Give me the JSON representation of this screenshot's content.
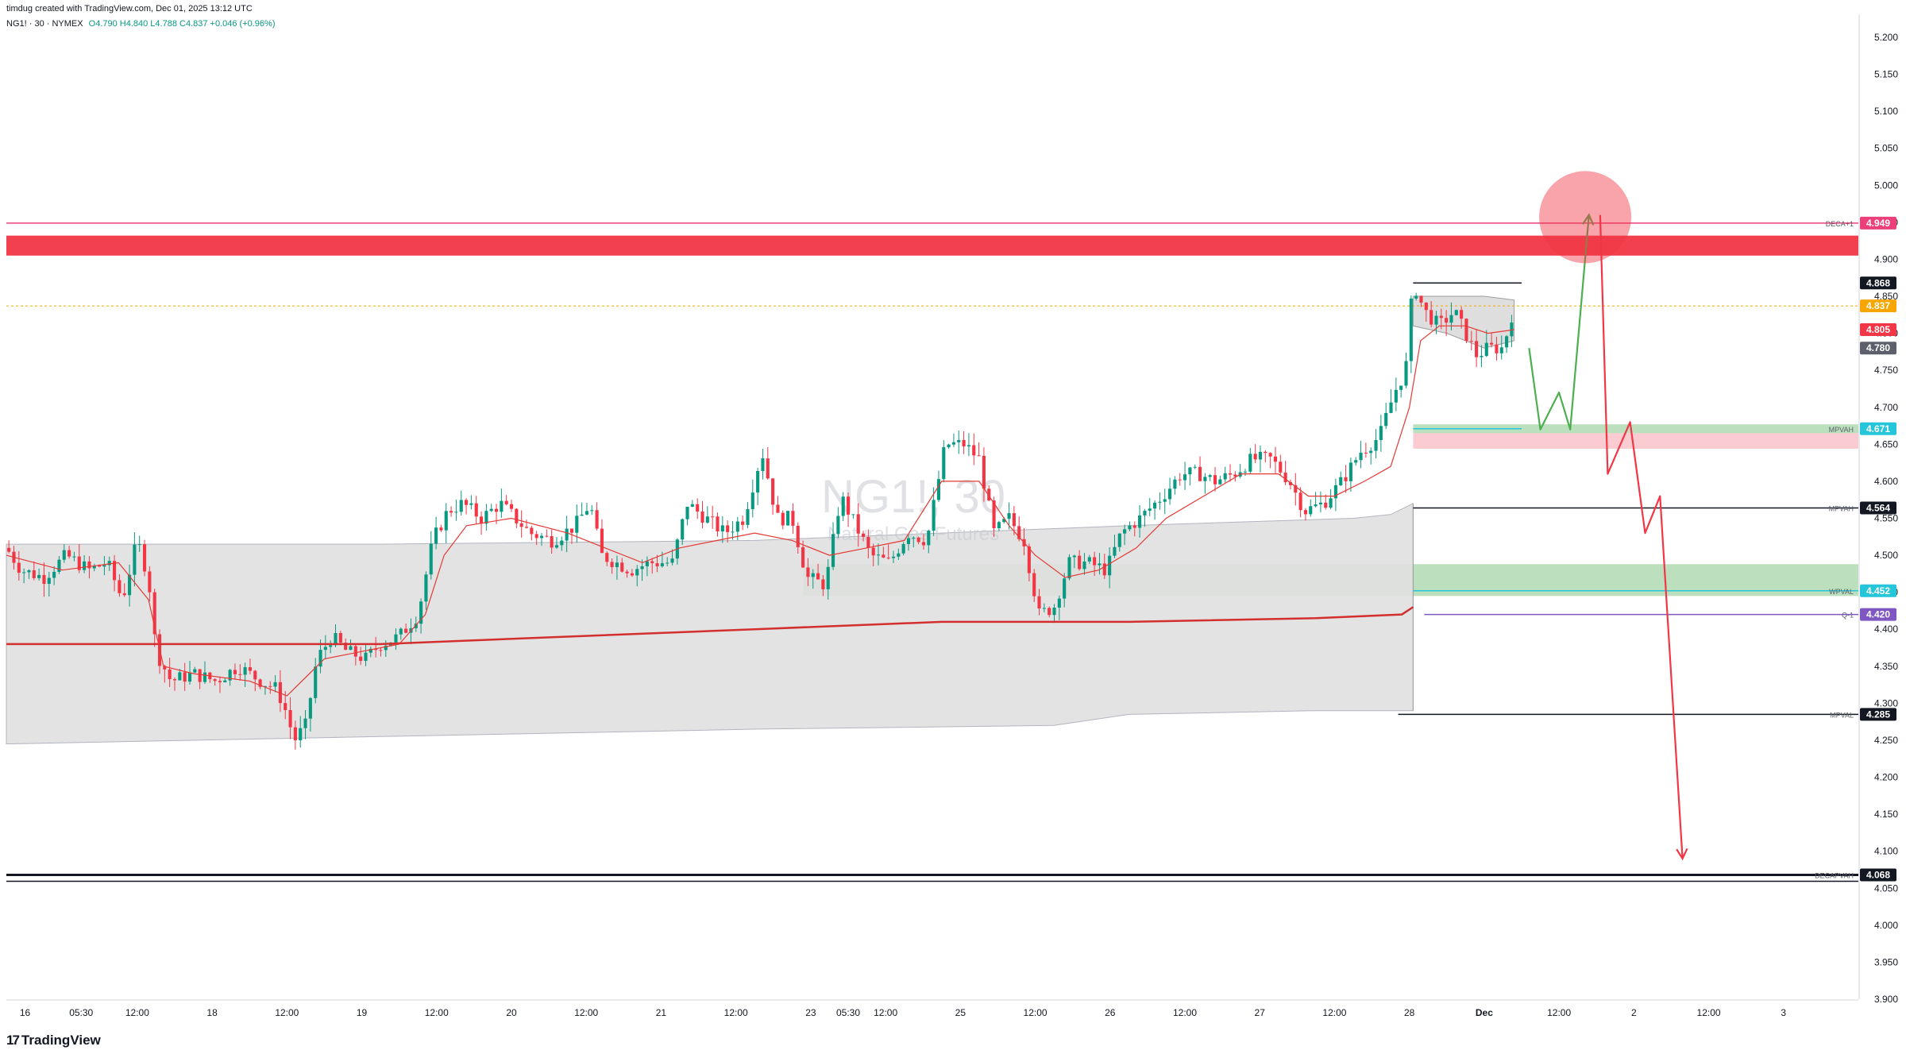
{
  "header": {
    "credit": "timdug created with TradingView.com, Dec 01, 2025 13:12 UTC",
    "symbol": "NG1! · 30 · NYMEX",
    "ohlc": "O4.790 H4.840 L4.788 C4.837 +0.046 (+0.96%)"
  },
  "watermark": {
    "symbol": "NG1!, 30",
    "name": "Natural Gas Futures"
  },
  "brand": {
    "name": "TradingView",
    "mark": "17"
  },
  "colors": {
    "up": "#089981",
    "down": "#f23645",
    "resistance_zone": "#f23645",
    "demand_zone": "#a5d6a7",
    "value_area": "#e0e0e0",
    "vwap": "#e53935",
    "projection_up": "#4caf50",
    "projection_down": "#f23645",
    "price_tag": "#f7a600",
    "q_line": "#7e57c2",
    "cyan_tag": "#26c6da",
    "deca_tag": "#ec407a"
  },
  "chart_data": {
    "type": "candlestick",
    "symbol": "NG1!",
    "timeframe": "30",
    "exchange": "NYMEX",
    "y_axis": {
      "range": [
        3.9,
        5.2
      ],
      "ticks": [
        "5.200",
        "5.150",
        "5.100",
        "5.050",
        "5.000",
        "4.950",
        "4.900",
        "4.850",
        "4.800",
        "4.750",
        "4.700",
        "4.650",
        "4.600",
        "4.550",
        "4.500",
        "4.450",
        "4.400",
        "4.350",
        "4.300",
        "4.250",
        "4.200",
        "4.150",
        "4.100",
        "4.050",
        "4.000",
        "3.950",
        "3.900"
      ]
    },
    "x_axis": {
      "ticks": [
        {
          "label": "16",
          "t": 0.5
        },
        {
          "label": "05:30",
          "t": 2
        },
        {
          "label": "12:00",
          "t": 3.5
        },
        {
          "label": "18",
          "t": 5.5
        },
        {
          "label": "12:00",
          "t": 7.5
        },
        {
          "label": "19",
          "t": 9.5
        },
        {
          "label": "12:00",
          "t": 11.5
        },
        {
          "label": "20",
          "t": 13.5
        },
        {
          "label": "12:00",
          "t": 15.5
        },
        {
          "label": "21",
          "t": 17.5
        },
        {
          "label": "12:00",
          "t": 19.5
        },
        {
          "label": "23",
          "t": 21.5
        },
        {
          "label": "05:30",
          "t": 22.5
        },
        {
          "label": "12:00",
          "t": 23.5
        },
        {
          "label": "25",
          "t": 25.5
        },
        {
          "label": "12:00",
          "t": 27.5
        },
        {
          "label": "26",
          "t": 29.5
        },
        {
          "label": "12:00",
          "t": 31.5
        },
        {
          "label": "27",
          "t": 33.5
        },
        {
          "label": "12:00",
          "t": 35.5
        },
        {
          "label": "28",
          "t": 37.5
        },
        {
          "label": "Dec",
          "t": 39.5,
          "bold": true
        },
        {
          "label": "12:00",
          "t": 41.5
        },
        {
          "label": "2",
          "t": 43.5
        },
        {
          "label": "12:00",
          "t": 45.5
        },
        {
          "label": "3",
          "t": 47.5
        }
      ]
    },
    "price_path": [
      [
        0,
        4.51
      ],
      [
        0.4,
        4.48
      ],
      [
        1,
        4.47
      ],
      [
        1.6,
        4.5
      ],
      [
        2.2,
        4.48
      ],
      [
        2.7,
        4.49
      ],
      [
        3.1,
        4.44
      ],
      [
        3.5,
        4.52
      ],
      [
        3.8,
        4.47
      ],
      [
        4,
        4.37
      ],
      [
        4.4,
        4.33
      ],
      [
        5,
        4.34
      ],
      [
        5.6,
        4.33
      ],
      [
        6.2,
        4.35
      ],
      [
        6.8,
        4.33
      ],
      [
        7.2,
        4.32
      ],
      [
        7.4,
        4.3
      ],
      [
        7.7,
        4.25
      ],
      [
        8,
        4.27
      ],
      [
        8.3,
        4.36
      ],
      [
        8.7,
        4.39
      ],
      [
        9.1,
        4.37
      ],
      [
        9.6,
        4.36
      ],
      [
        10,
        4.38
      ],
      [
        10.5,
        4.39
      ],
      [
        11,
        4.42
      ],
      [
        11.4,
        4.52
      ],
      [
        11.8,
        4.56
      ],
      [
        12.2,
        4.57
      ],
      [
        12.7,
        4.55
      ],
      [
        13.2,
        4.57
      ],
      [
        13.6,
        4.55
      ],
      [
        14,
        4.53
      ],
      [
        14.6,
        4.52
      ],
      [
        15.2,
        4.54
      ],
      [
        15.6,
        4.57
      ],
      [
        15.9,
        4.5
      ],
      [
        16.3,
        4.49
      ],
      [
        16.7,
        4.48
      ],
      [
        17.2,
        4.49
      ],
      [
        17.8,
        4.49
      ],
      [
        18.2,
        4.57
      ],
      [
        18.7,
        4.55
      ],
      [
        19.2,
        4.53
      ],
      [
        19.7,
        4.55
      ],
      [
        20.2,
        4.64
      ],
      [
        20.6,
        4.55
      ],
      [
        21,
        4.55
      ],
      [
        21.4,
        4.47
      ],
      [
        21.9,
        4.46
      ],
      [
        22.3,
        4.58
      ],
      [
        22.7,
        4.54
      ],
      [
        23.1,
        4.5
      ],
      [
        23.6,
        4.49
      ],
      [
        24.1,
        4.53
      ],
      [
        24.6,
        4.52
      ],
      [
        25.1,
        4.65
      ],
      [
        25.6,
        4.65
      ],
      [
        26,
        4.63
      ],
      [
        26.4,
        4.53
      ],
      [
        26.8,
        4.55
      ],
      [
        27.2,
        4.52
      ],
      [
        27.6,
        4.42
      ],
      [
        28,
        4.43
      ],
      [
        28.4,
        4.49
      ],
      [
        28.9,
        4.49
      ],
      [
        29.4,
        4.48
      ],
      [
        29.8,
        4.53
      ],
      [
        30.3,
        4.55
      ],
      [
        30.9,
        4.58
      ],
      [
        31.4,
        4.61
      ],
      [
        31.9,
        4.61
      ],
      [
        32.3,
        4.6
      ],
      [
        32.8,
        4.61
      ],
      [
        33.3,
        4.63
      ],
      [
        33.8,
        4.63
      ],
      [
        34.3,
        4.6
      ],
      [
        34.7,
        4.56
      ],
      [
        35.2,
        4.57
      ],
      [
        35.7,
        4.6
      ],
      [
        36.2,
        4.64
      ],
      [
        36.7,
        4.66
      ],
      [
        37.1,
        4.72
      ],
      [
        37.4,
        4.75
      ],
      [
        37.6,
        4.87
      ],
      [
        37.9,
        4.83
      ],
      [
        38.3,
        4.81
      ],
      [
        38.7,
        4.83
      ],
      [
        39,
        4.8
      ],
      [
        39.3,
        4.77
      ],
      [
        39.6,
        4.78
      ],
      [
        40,
        4.78
      ],
      [
        40.3,
        4.837
      ]
    ],
    "vwap_path": [
      [
        0,
        4.5
      ],
      [
        1.5,
        4.48
      ],
      [
        3,
        4.49
      ],
      [
        3.8,
        4.44
      ],
      [
        4.2,
        4.35
      ],
      [
        5,
        4.34
      ],
      [
        6.5,
        4.33
      ],
      [
        7.5,
        4.31
      ],
      [
        8.5,
        4.36
      ],
      [
        9.5,
        4.37
      ],
      [
        10.5,
        4.38
      ],
      [
        11.2,
        4.42
      ],
      [
        11.7,
        4.5
      ],
      [
        12.3,
        4.54
      ],
      [
        13.5,
        4.55
      ],
      [
        15,
        4.53
      ],
      [
        16,
        4.51
      ],
      [
        17,
        4.49
      ],
      [
        18,
        4.51
      ],
      [
        19,
        4.52
      ],
      [
        20,
        4.53
      ],
      [
        21,
        4.52
      ],
      [
        22,
        4.5
      ],
      [
        23,
        4.51
      ],
      [
        24,
        4.52
      ],
      [
        25,
        4.6
      ],
      [
        26,
        4.6
      ],
      [
        26.8,
        4.54
      ],
      [
        27.5,
        4.5
      ],
      [
        28.3,
        4.47
      ],
      [
        29.2,
        4.48
      ],
      [
        30.2,
        4.51
      ],
      [
        31,
        4.55
      ],
      [
        32,
        4.58
      ],
      [
        33,
        4.61
      ],
      [
        34,
        4.61
      ],
      [
        34.8,
        4.58
      ],
      [
        35.5,
        4.58
      ],
      [
        36.3,
        4.6
      ],
      [
        37,
        4.62
      ],
      [
        37.5,
        4.7
      ],
      [
        37.8,
        4.79
      ],
      [
        38.3,
        4.81
      ],
      [
        39,
        4.81
      ],
      [
        39.6,
        4.8
      ],
      [
        40.3,
        4.805
      ]
    ],
    "mid_line": [
      [
        0,
        4.38
      ],
      [
        3,
        4.38
      ],
      [
        6,
        4.38
      ],
      [
        10,
        4.38
      ],
      [
        15,
        4.39
      ],
      [
        20,
        4.4
      ],
      [
        25,
        4.41
      ],
      [
        30,
        4.41
      ],
      [
        35,
        4.415
      ],
      [
        37.3,
        4.42
      ],
      [
        37.6,
        4.43
      ]
    ],
    "value_area": {
      "top": [
        [
          0,
          4.515
        ],
        [
          10,
          4.515
        ],
        [
          20,
          4.52
        ],
        [
          30,
          4.54
        ],
        [
          36,
          4.55
        ],
        [
          37,
          4.555
        ],
        [
          37.6,
          4.57
        ]
      ],
      "bottom": [
        [
          0,
          4.245
        ],
        [
          10,
          4.255
        ],
        [
          20,
          4.265
        ],
        [
          28,
          4.27
        ],
        [
          30,
          4.285
        ],
        [
          35,
          4.29
        ],
        [
          37.6,
          4.29
        ]
      ]
    },
    "session_box": {
      "top": [
        [
          37.6,
          4.85
        ],
        [
          38.6,
          4.85
        ],
        [
          39.5,
          4.85
        ],
        [
          40.3,
          4.845
        ]
      ],
      "bottom": [
        [
          37.6,
          4.81
        ],
        [
          38.5,
          4.8
        ],
        [
          39.5,
          4.78
        ],
        [
          40.3,
          4.79
        ]
      ]
    },
    "zones": [
      {
        "kind": "resistance",
        "from": 0,
        "to": 49.5,
        "low": 4.905,
        "high": 4.932
      },
      {
        "kind": "demand",
        "from": 21.3,
        "to": 49.5,
        "low": 4.445,
        "high": 4.488
      },
      {
        "kind": "demand",
        "from": 37.6,
        "to": 49.5,
        "low": 4.665,
        "high": 4.677
      },
      {
        "kind": "supply",
        "from": 37.6,
        "to": 49.5,
        "low": 4.644,
        "high": 4.665
      }
    ],
    "levels": [
      {
        "price": 4.949,
        "label": "DECA+1",
        "tag": "4.949",
        "color": "#ec407a",
        "from": 0
      },
      {
        "price": 4.868,
        "label": "",
        "tag": "4.868",
        "color": "#131722",
        "from": 37.6,
        "to": 40.5,
        "hide_line_right": true
      },
      {
        "price": 4.837,
        "label": "",
        "tag": "4.837",
        "color": "#f7a600",
        "from": 0,
        "dashed": true
      },
      {
        "price": 4.805,
        "label": "",
        "tag": "4.805",
        "color": "#f23645"
      },
      {
        "price": 4.78,
        "label": "",
        "tag": "4.780",
        "color": "#5d606b"
      },
      {
        "price": 4.671,
        "label": "MPVAH",
        "tag": "4.671",
        "color": "#26c6da",
        "from": 37.6,
        "to": 40.5
      },
      {
        "price": 4.564,
        "label": "MPVAH",
        "tag": "4.564",
        "color": "#131722",
        "from": 37.6
      },
      {
        "price": 4.452,
        "label": "WPVAL",
        "tag": "4.452",
        "color": "#26c6da",
        "from": 37.6
      },
      {
        "price": 4.42,
        "label": "Q-1",
        "tag": "4.420",
        "color": "#7e57c2",
        "from": 37.9
      },
      {
        "price": 4.285,
        "label": "MPVAL",
        "tag": "4.285",
        "color": "#131722",
        "from": 37.2
      },
      {
        "price": 4.068,
        "label": "DECAPVAH",
        "tag": "4.068",
        "color": "#131722",
        "from": 0
      }
    ],
    "projections": [
      {
        "color": "#4caf50",
        "points": [
          [
            40.7,
            4.78
          ],
          [
            41,
            4.67
          ],
          [
            41.5,
            4.72
          ],
          [
            41.8,
            4.67
          ],
          [
            42.3,
            4.96
          ]
        ]
      },
      {
        "color": "#f23645",
        "points": [
          [
            42.6,
            4.96
          ],
          [
            42.8,
            4.61
          ],
          [
            43.4,
            4.68
          ],
          [
            43.8,
            4.53
          ],
          [
            44.2,
            4.58
          ],
          [
            44.8,
            4.09
          ]
        ]
      }
    ],
    "target_circle": {
      "t": 42.2,
      "price": 4.957
    }
  }
}
